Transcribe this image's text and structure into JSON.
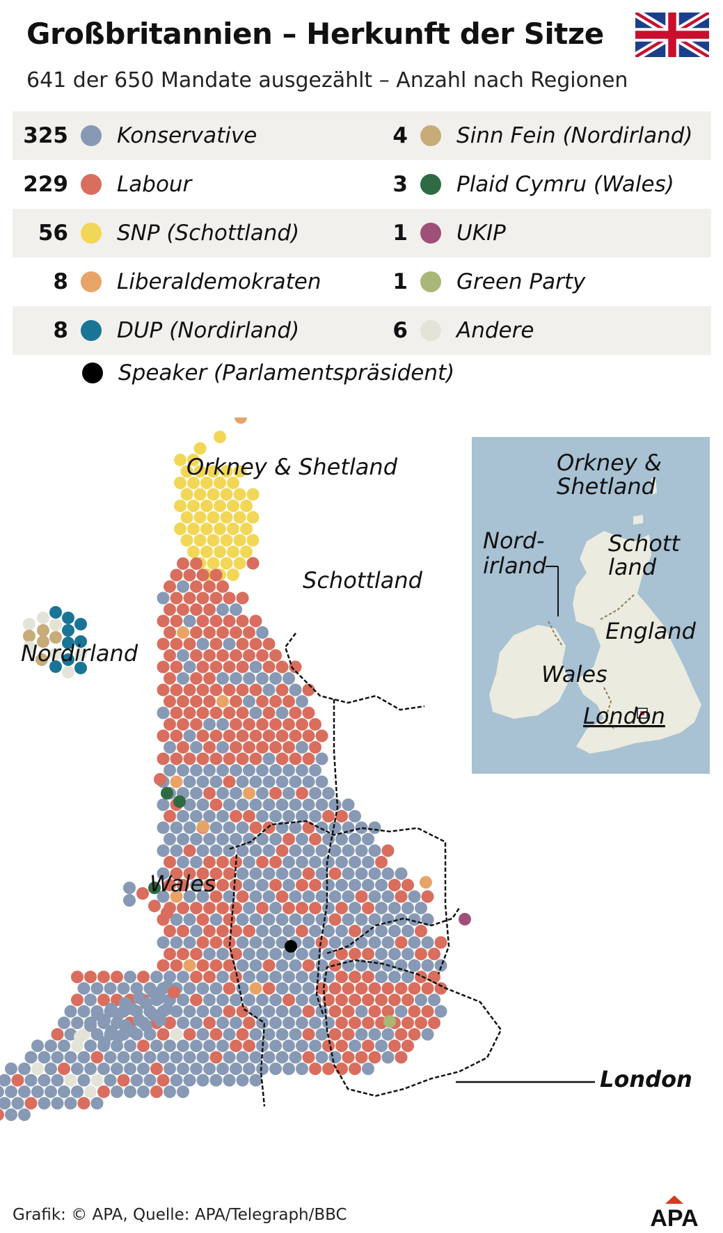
{
  "chart_data": {
    "type": "hexmap",
    "title": "Großbritannien – Herkunft der Sitze",
    "subtitle": "641 der 650 Mandate ausgezählt – Anzahl nach Regionen",
    "legend": [
      {
        "value": "325",
        "label": "Konservative",
        "color": "#8799b4"
      },
      {
        "value": "229",
        "label": "Labour",
        "color": "#d96e5e"
      },
      {
        "value": "56",
        "label": "SNP (Schottland)",
        "color": "#f2d757"
      },
      {
        "value": "8",
        "label": "Liberaldemokraten",
        "color": "#e8a467"
      },
      {
        "value": "8",
        "label": "DUP (Nordirland)",
        "color": "#1a7496"
      },
      {
        "value": "4",
        "label": "Sinn Fein (Nordirland)",
        "color": "#c7ab79"
      },
      {
        "value": "3",
        "label": "Plaid Cymru (Wales)",
        "color": "#2e6b43"
      },
      {
        "value": "1",
        "label": "UKIP",
        "color": "#9e5078"
      },
      {
        "value": "1",
        "label": "Green Party",
        "color": "#a9b778"
      },
      {
        "value": "6",
        "label": "Andere",
        "color": "#e4e3d8"
      }
    ],
    "speaker": {
      "label": "Speaker (Parlamentspräsident)",
      "color": "#000000"
    },
    "region_labels": [
      "Orkney & Shetland",
      "Schottland",
      "Nordirland",
      "Wales",
      "London"
    ],
    "inset_labels": [
      "Orkney &",
      "Shetland",
      "Nord-",
      "irland",
      "Schott",
      "land",
      "England",
      "Wales",
      "London"
    ]
  },
  "source": "Grafik: © APA, Quelle: APA/Telegraph/BBC",
  "logo": "APA"
}
